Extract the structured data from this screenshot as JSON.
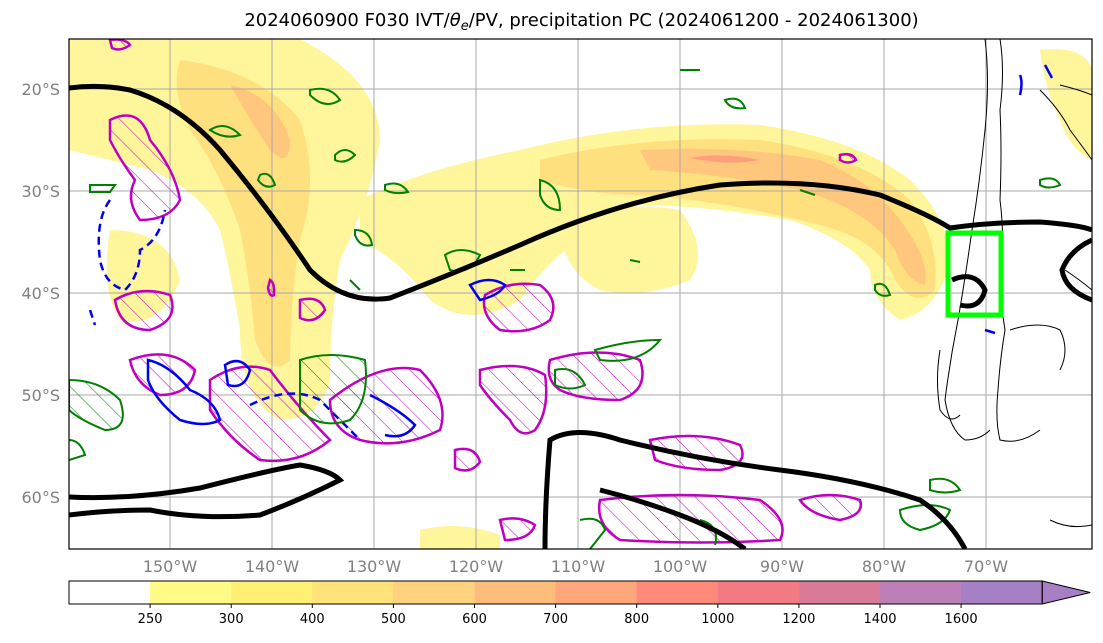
{
  "title": {
    "prefix": "2024060900 F030 IVT/",
    "theta": "θ",
    "theta_sub": "e",
    "suffix": "/PV, precipitation PC (2024061200 - 2024061300)"
  },
  "map": {
    "lat_labels": [
      "20°S",
      "30°S",
      "40°S",
      "50°S",
      "60°S"
    ],
    "lon_labels": [
      "150°W",
      "140°W",
      "130°W",
      "120°W",
      "110°W",
      "100°W",
      "90°W",
      "80°W",
      "70°W"
    ]
  },
  "colorbar": {
    "ticks": [
      "250",
      "300",
      "400",
      "500",
      "600",
      "700",
      "800",
      "1000",
      "1200",
      "1400",
      "1600"
    ],
    "colors": [
      "#ffffff",
      "#fffb86",
      "#fff073",
      "#ffe27a",
      "#ffd27e",
      "#ffbd7c",
      "#ffa77a",
      "#ff8a7a",
      "#f27a82",
      "#d87a98",
      "#bd7fb8",
      "#a77fc4"
    ]
  },
  "colors": {
    "ivt_light": "#fff59a",
    "ivt_mid": "#ffe07e",
    "ivt_high": "#ffc67e",
    "ivt_core": "#ff9f7a",
    "theta_contour": "#000000",
    "pv_positive": "#c000c0",
    "pv_negative": "#0000ee",
    "precip": "#008000",
    "box": "#00ff00"
  }
}
